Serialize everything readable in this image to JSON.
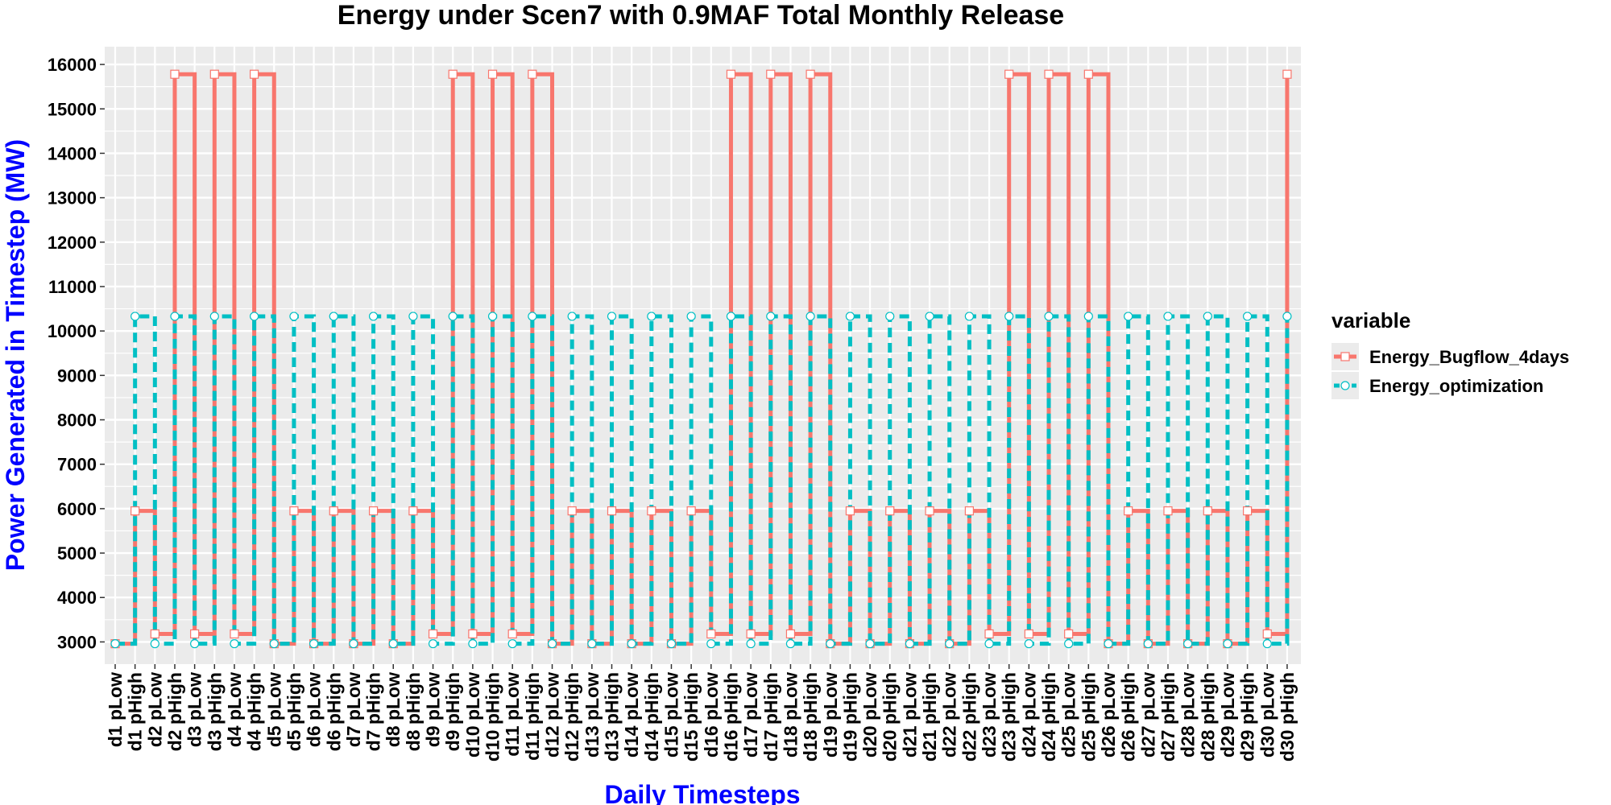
{
  "chart_data": {
    "type": "line",
    "title": "Energy under Scen7 with 0.9MAF Total Monthly Release",
    "xlabel": "Daily Timesteps",
    "ylabel": "Power Generated in Timestep (MW)",
    "ylim": [
      2500,
      16400
    ],
    "yticks": [
      3000,
      4000,
      5000,
      6000,
      7000,
      8000,
      9000,
      10000,
      11000,
      12000,
      13000,
      14000,
      15000,
      16000
    ],
    "grid": true,
    "legend_title": "variable",
    "legend_position": "right",
    "categories": [
      "d1 pLow",
      "d1 pHigh",
      "d2 pLow",
      "d2 pHigh",
      "d3 pLow",
      "d3 pHigh",
      "d4 pLow",
      "d4 pHigh",
      "d5 pLow",
      "d5 pHigh",
      "d6 pLow",
      "d6 pHigh",
      "d7 pLow",
      "d7 pHigh",
      "d8 pLow",
      "d8 pHigh",
      "d9 pLow",
      "d9 pHigh",
      "d10 pLow",
      "d10 pHigh",
      "d11 pLow",
      "d11 pHigh",
      "d12 pLow",
      "d12 pHigh",
      "d13 pLow",
      "d13 pHigh",
      "d14 pLow",
      "d14 pHigh",
      "d15 pLow",
      "d15 pHigh",
      "d16 pLow",
      "d16 pHigh",
      "d17 pLow",
      "d17 pHigh",
      "d18 pLow",
      "d18 pHigh",
      "d19 pLow",
      "d19 pHigh",
      "d20 pLow",
      "d20 pHigh",
      "d21 pLow",
      "d21 pHigh",
      "d22 pLow",
      "d22 pHigh",
      "d23 pLow",
      "d23 pHigh",
      "d24 pLow",
      "d24 pHigh",
      "d25 pLow",
      "d25 pHigh",
      "d26 pLow",
      "d26 pHigh",
      "d27 pLow",
      "d27 pHigh",
      "d28 pLow",
      "d28 pHigh",
      "d29 pLow",
      "d29 pHigh",
      "d30 pLow",
      "d30 pHigh"
    ],
    "series": [
      {
        "name": "Energy_Bugflow_4days",
        "color": "#f8766d",
        "line": "solid",
        "marker": "square",
        "values": [
          2960,
          5950,
          3180,
          15780,
          3180,
          15780,
          3180,
          15780,
          2960,
          5950,
          2960,
          5950,
          2960,
          5950,
          2960,
          5950,
          3180,
          15780,
          3180,
          15780,
          3180,
          15780,
          2960,
          5950,
          2960,
          5950,
          2960,
          5950,
          2960,
          5950,
          3180,
          15780,
          3180,
          15780,
          3180,
          15780,
          2960,
          5950,
          2960,
          5950,
          2960,
          5950,
          2960,
          5950,
          3180,
          15780,
          3180,
          15780,
          3180,
          15780,
          2960,
          5950,
          2960,
          5950,
          2960,
          5950,
          2960,
          5950,
          3180,
          15780
        ]
      },
      {
        "name": "Energy_optimization",
        "color": "#00bfc4",
        "line": "dashed",
        "marker": "circle",
        "values": [
          2960,
          10330,
          2960,
          10330,
          2960,
          10330,
          2960,
          10330,
          2960,
          10330,
          2960,
          10330,
          2960,
          10330,
          2960,
          10330,
          2960,
          10330,
          2960,
          10330,
          2960,
          10330,
          2960,
          10330,
          2960,
          10330,
          2960,
          10330,
          2960,
          10330,
          2960,
          10330,
          2960,
          10330,
          2960,
          10330,
          2960,
          10330,
          2960,
          10330,
          2960,
          10330,
          2960,
          10330,
          2960,
          10330,
          2960,
          10330,
          2960,
          10330,
          2960,
          10330,
          2960,
          10330,
          2960,
          10330,
          2960,
          10330,
          2960,
          10330
        ]
      }
    ]
  }
}
